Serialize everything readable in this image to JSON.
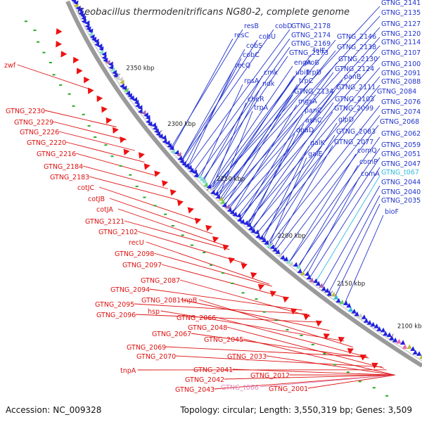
{
  "title": "Geobacillus thermodenitrificans NG80-2, complete genome",
  "footer": {
    "accession": "Accession: NC_009328",
    "topology": "Topology: circular; Length: 3,550,319 bp; Genes: 3,509"
  },
  "colors": {
    "background": "#ffffff",
    "backbone": "#9a9a9a",
    "forward_strand": "#2222dd",
    "reverse_strand": "#ee1111",
    "forward_label": "#2233cc",
    "reverse_label": "#dd1111",
    "trna": "#33bbdd",
    "misc_feature": "#dd88bb",
    "gc_tick": "#22aa22"
  },
  "ruler": [
    "2350 kbp",
    "2300 kbp",
    "2250 kbp",
    "2200 kbp",
    "2150 kbp",
    "2100 kbp"
  ],
  "forward_labels": [
    "resB",
    "cobD",
    "resC",
    "cobU",
    "cobS",
    "cobC",
    "recQ",
    "cmk",
    "rpsA",
    "ndk",
    "cheR",
    "trpA",
    "GTNG_2178",
    "GTNG_2174",
    "GTNG_2169",
    "GTNG_2173",
    "engA",
    "aroB",
    "ubiE",
    "trpD",
    "trpC",
    "GTNG_2134",
    "mgsA",
    "panC",
    "asnC",
    "dnaD",
    "galK",
    "galE",
    "GTNG_2146",
    "GTNG_2138",
    "folE",
    "GTNG_2124",
    "GTNG_2130",
    "panB",
    "GTNG_2111",
    "GTNG_2103",
    "GTNG_2099",
    "glpD",
    "GTNG_2083",
    "GTNG_2077",
    "comQ",
    "comP",
    "comA",
    "bioF",
    "GTNG_2141",
    "GTNG_2135",
    "GTNG_2127",
    "GTNG_2120",
    "GTNG_2114",
    "GTNG_2107",
    "GTNG_2100",
    "GTNG_2091",
    "GTNG_2088",
    "GTNG_2084",
    "GTNG_2076",
    "GTNG_2074",
    "GTNG_2068",
    "GTNG_2062",
    "GTNG_2059",
    "GTNG_2051",
    "GTNG_2047",
    "GTNG_t067",
    "GTNG_2044",
    "GTNG_2040",
    "GTNG_2035"
  ],
  "reverse_labels": [
    "zwf",
    "GTNG_2230",
    "GTNG_2229",
    "GTNG_2226",
    "GTNG_2220",
    "GTNG_2216",
    "GTNG_2184",
    "GTNG_2183",
    "cotJC",
    "cotJB",
    "cotJA",
    "GTNG_2121",
    "GTNG_2102",
    "recU",
    "GTNG_2098",
    "GTNG_2097",
    "GTNG_2087",
    "GTNG_2094",
    "GTNG_2081",
    "tnpB",
    "GTNG_2095",
    "GTNG_2096",
    "hsp",
    "GTNG_2066",
    "GTNG_2048",
    "GTNG_2067",
    "GTNG_2045",
    "GTNG_2069",
    "GTNG_2070",
    "GTNG_2033",
    "tnpA",
    "GTNG_2041",
    "GTNG_2042",
    "GTNG_2012",
    "GTNG_2043",
    "GTNG_t066",
    "GTNG_2001"
  ]
}
